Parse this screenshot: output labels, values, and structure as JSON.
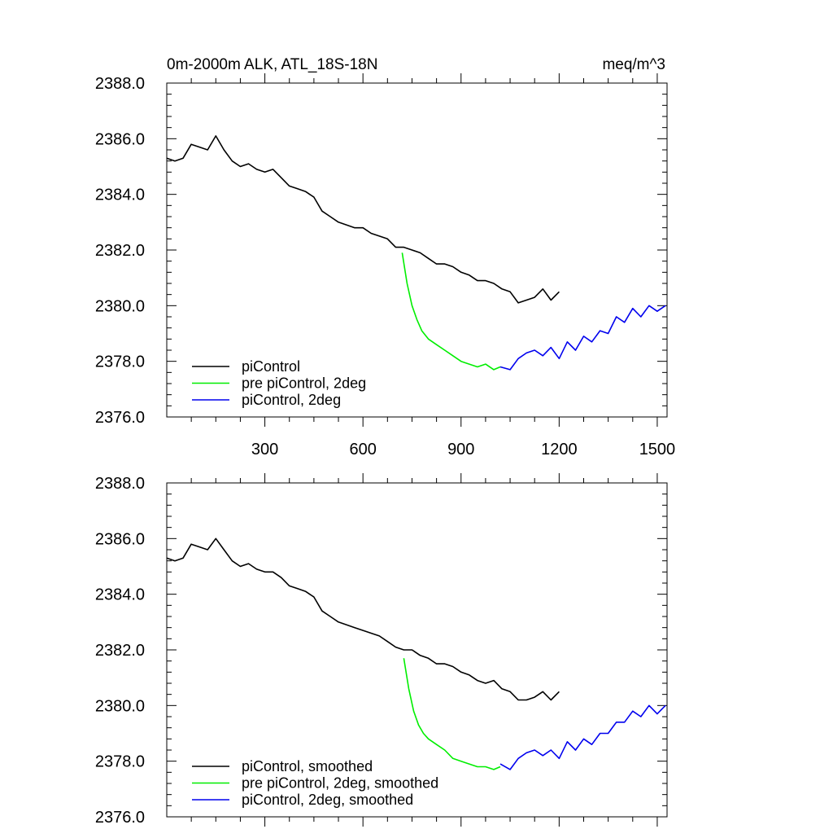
{
  "chart_data": [
    {
      "type": "line",
      "title": "0m-2000m ALK, ATL_18S-18N",
      "units": "meq/m^3",
      "xlim": [
        0,
        1530
      ],
      "ylim": [
        2376.0,
        2388.0
      ],
      "xticks": [
        300,
        600,
        900,
        1200,
        1500
      ],
      "xtick_labels": [
        "300",
        "600",
        "900",
        "1200",
        "1500"
      ],
      "yticks": [
        2376.0,
        2378.0,
        2380.0,
        2382.0,
        2384.0,
        2386.0,
        2388.0
      ],
      "ytick_labels": [
        "2376.0",
        "2378.0",
        "2380.0",
        "2382.0",
        "2384.0",
        "2386.0",
        "2388.0"
      ],
      "series": [
        {
          "name": "piControl",
          "color": "#000000",
          "x": [
            0,
            25,
            50,
            75,
            100,
            125,
            150,
            175,
            200,
            225,
            250,
            275,
            300,
            325,
            350,
            375,
            400,
            425,
            450,
            475,
            500,
            525,
            550,
            575,
            600,
            625,
            650,
            675,
            700,
            725,
            750,
            775,
            800,
            825,
            850,
            875,
            900,
            925,
            950,
            975,
            1000,
            1025,
            1050,
            1075,
            1100,
            1125,
            1150,
            1175,
            1200
          ],
          "y": [
            2385.3,
            2385.2,
            2385.3,
            2385.8,
            2385.7,
            2385.6,
            2386.1,
            2385.6,
            2385.2,
            2385.0,
            2385.1,
            2384.9,
            2384.8,
            2384.9,
            2384.6,
            2384.3,
            2384.2,
            2384.1,
            2383.9,
            2383.4,
            2383.2,
            2383.0,
            2382.9,
            2382.8,
            2382.8,
            2382.6,
            2382.5,
            2382.4,
            2382.1,
            2382.1,
            2382.0,
            2381.9,
            2381.7,
            2381.5,
            2381.5,
            2381.4,
            2381.2,
            2381.1,
            2380.9,
            2380.9,
            2380.8,
            2380.6,
            2380.5,
            2380.1,
            2380.2,
            2380.3,
            2380.6,
            2380.2,
            2380.5
          ]
        },
        {
          "name": "pre piControl, 2deg",
          "color": "#00ee00",
          "x": [
            720,
            735,
            750,
            765,
            780,
            800,
            825,
            850,
            875,
            900,
            925,
            950,
            975,
            1000,
            1020
          ],
          "y": [
            2381.9,
            2380.8,
            2380.0,
            2379.5,
            2379.1,
            2378.8,
            2378.6,
            2378.4,
            2378.2,
            2378.0,
            2377.9,
            2377.8,
            2377.9,
            2377.7,
            2377.8
          ]
        },
        {
          "name": "piControl, 2deg",
          "color": "#0000ee",
          "x": [
            1020,
            1050,
            1075,
            1100,
            1125,
            1150,
            1175,
            1200,
            1225,
            1250,
            1275,
            1300,
            1325,
            1350,
            1375,
            1400,
            1425,
            1450,
            1475,
            1500,
            1525
          ],
          "y": [
            2377.8,
            2377.7,
            2378.1,
            2378.3,
            2378.4,
            2378.2,
            2378.5,
            2378.1,
            2378.7,
            2378.4,
            2378.9,
            2378.7,
            2379.1,
            2379.0,
            2379.6,
            2379.4,
            2379.9,
            2379.6,
            2380.0,
            2379.8,
            2380.0
          ]
        }
      ],
      "legend": {
        "position": "bottom-left",
        "entries": [
          "piControl",
          "pre piControl, 2deg",
          "piControl, 2deg"
        ]
      }
    },
    {
      "type": "line",
      "title": "",
      "xlim": [
        0,
        1530
      ],
      "ylim": [
        2376.0,
        2388.0
      ],
      "xticks": [
        300,
        600,
        900,
        1200,
        1500
      ],
      "yticks": [
        2376.0,
        2378.0,
        2380.0,
        2382.0,
        2384.0,
        2386.0,
        2388.0
      ],
      "ytick_labels": [
        "2376.0",
        "2378.0",
        "2380.0",
        "2382.0",
        "2384.0",
        "2386.0",
        "2388.0"
      ],
      "series": [
        {
          "name": "piControl, smoothed",
          "color": "#000000",
          "x": [
            0,
            25,
            50,
            75,
            100,
            125,
            150,
            175,
            200,
            225,
            250,
            275,
            300,
            325,
            350,
            375,
            400,
            425,
            450,
            475,
            500,
            525,
            550,
            575,
            600,
            625,
            650,
            675,
            700,
            725,
            750,
            775,
            800,
            825,
            850,
            875,
            900,
            925,
            950,
            975,
            1000,
            1025,
            1050,
            1075,
            1100,
            1125,
            1150,
            1175,
            1200
          ],
          "y": [
            2385.3,
            2385.2,
            2385.3,
            2385.8,
            2385.7,
            2385.6,
            2386.0,
            2385.6,
            2385.2,
            2385.0,
            2385.1,
            2384.9,
            2384.8,
            2384.8,
            2384.6,
            2384.3,
            2384.2,
            2384.1,
            2383.9,
            2383.4,
            2383.2,
            2383.0,
            2382.9,
            2382.8,
            2382.7,
            2382.6,
            2382.5,
            2382.3,
            2382.1,
            2382.0,
            2382.0,
            2381.8,
            2381.7,
            2381.5,
            2381.5,
            2381.4,
            2381.2,
            2381.1,
            2380.9,
            2380.8,
            2380.9,
            2380.6,
            2380.5,
            2380.2,
            2380.2,
            2380.3,
            2380.5,
            2380.2,
            2380.5
          ]
        },
        {
          "name": "pre piControl, 2deg, smoothed",
          "color": "#00ee00",
          "x": [
            725,
            740,
            755,
            770,
            785,
            800,
            825,
            850,
            875,
            900,
            925,
            950,
            975,
            1000,
            1020
          ],
          "y": [
            2381.7,
            2380.6,
            2379.8,
            2379.3,
            2379.0,
            2378.8,
            2378.6,
            2378.4,
            2378.1,
            2378.0,
            2377.9,
            2377.8,
            2377.8,
            2377.7,
            2377.8
          ]
        },
        {
          "name": "piControl, 2deg, smoothed",
          "color": "#0000ee",
          "x": [
            1020,
            1050,
            1075,
            1100,
            1125,
            1150,
            1175,
            1200,
            1225,
            1250,
            1275,
            1300,
            1325,
            1350,
            1375,
            1400,
            1425,
            1450,
            1475,
            1500,
            1525
          ],
          "y": [
            2377.9,
            2377.7,
            2378.1,
            2378.3,
            2378.4,
            2378.2,
            2378.4,
            2378.1,
            2378.7,
            2378.4,
            2378.8,
            2378.6,
            2379.0,
            2379.0,
            2379.4,
            2379.4,
            2379.8,
            2379.6,
            2380.0,
            2379.7,
            2380.0
          ]
        }
      ],
      "legend": {
        "position": "bottom-left",
        "entries": [
          "piControl, smoothed",
          "pre piControl, 2deg, smoothed",
          "piControl, 2deg, smoothed"
        ]
      }
    }
  ]
}
